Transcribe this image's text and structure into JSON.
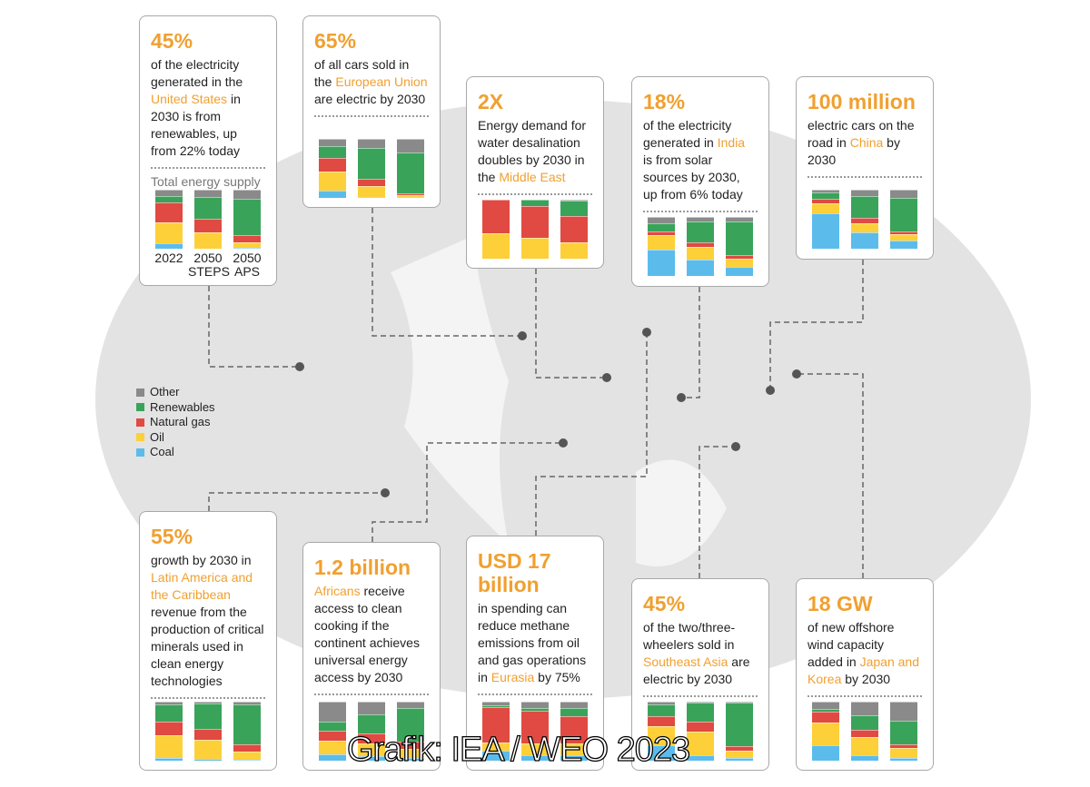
{
  "colors": {
    "accent": "#f0a030",
    "Coal": "#5bbcec",
    "Oil": "#fdd03a",
    "Natural gas": "#e04a42",
    "Renewables": "#3aa35a",
    "Other": "#8a8a8a",
    "map": "#e3e3e3"
  },
  "legend": {
    "items": [
      "Other",
      "Renewables",
      "Natural gas",
      "Oil",
      "Coal"
    ]
  },
  "credit": "Grafik: IEA / WEO 2023",
  "cards": [
    {
      "headline": "45%",
      "parts": [
        {
          "t": "of the electricity generated in the "
        },
        {
          "t": "United States",
          "hl": true
        },
        {
          "t": " in 2030 is from renewables, up from 22% today"
        }
      ],
      "subtitle": "Total energy supply",
      "xlabels": [
        "2022",
        "2050 STEPS",
        "2050 APS"
      ]
    },
    {
      "headline": "65%",
      "parts": [
        {
          "t": "of all cars sold in the "
        },
        {
          "t": "European Union",
          "hl": true
        },
        {
          "t": " are electric by 2030"
        }
      ]
    },
    {
      "headline": "2X",
      "parts": [
        {
          "t": "Energy demand for water desalination doubles by 2030 in the "
        },
        {
          "t": "Middle East",
          "hl": true
        }
      ]
    },
    {
      "headline": "18%",
      "parts": [
        {
          "t": "of the electricity generated in "
        },
        {
          "t": "India",
          "hl": true
        },
        {
          "t": " is from solar sources by 2030, up from 6% today"
        }
      ]
    },
    {
      "headline": "100 million",
      "parts": [
        {
          "t": "electric cars on the road in "
        },
        {
          "t": "China",
          "hl": true
        },
        {
          "t": " by 2030"
        }
      ]
    },
    {
      "headline": "55%",
      "parts": [
        {
          "t": "growth by 2030 in "
        },
        {
          "t": "Latin America and the Caribbean",
          "hl": true
        },
        {
          "t": " revenue from the production of critical minerals used in clean energy technologies"
        }
      ]
    },
    {
      "headline": "1.2 billion",
      "parts": [
        {
          "t": "Africans",
          "hl": true
        },
        {
          "t": " receive access to clean cooking if the continent achieves universal energy access by 2030"
        }
      ]
    },
    {
      "headline": "USD 17 billion",
      "parts": [
        {
          "t": "in spending can reduce methane emissions from oil and gas operations in "
        },
        {
          "t": "Eurasia",
          "hl": true
        },
        {
          "t": " by 75%"
        }
      ]
    },
    {
      "headline": "45%",
      "parts": [
        {
          "t": "of the two/three-wheelers sold in "
        },
        {
          "t": "Southeast Asia",
          "hl": true
        },
        {
          "t": " are electric by 2030"
        }
      ]
    },
    {
      "headline": "18 GW",
      "parts": [
        {
          "t": "of new offshore wind capacity added in "
        },
        {
          "t": "Japan and Korea",
          "hl": true
        },
        {
          "t": " by 2030"
        }
      ]
    }
  ],
  "chart_data": [
    {
      "type": "bar",
      "stacked": true,
      "region": "United States",
      "subtitle": "Total energy supply",
      "categories": [
        "2022",
        "2050 STEPS",
        "2050 APS"
      ],
      "unit": "%",
      "series": [
        {
          "name": "Coal",
          "values": [
            10,
            0,
            1
          ]
        },
        {
          "name": "Oil",
          "values": [
            34,
            28,
            9
          ]
        },
        {
          "name": "Natural gas",
          "values": [
            35,
            23,
            13
          ]
        },
        {
          "name": "Renewables",
          "values": [
            11,
            37,
            61
          ]
        },
        {
          "name": "Other",
          "values": [
            10,
            12,
            16
          ]
        }
      ]
    },
    {
      "type": "bar",
      "stacked": true,
      "region": "European Union",
      "categories": [
        "",
        "",
        ""
      ],
      "unit": "%",
      "series": [
        {
          "name": "Coal",
          "values": [
            13,
            2,
            2
          ]
        },
        {
          "name": "Oil",
          "values": [
            32,
            18,
            3
          ]
        },
        {
          "name": "Natural gas",
          "values": [
            23,
            13,
            2
          ]
        },
        {
          "name": "Renewables",
          "values": [
            19,
            51,
            70
          ]
        },
        {
          "name": "Other",
          "values": [
            13,
            16,
            23
          ]
        }
      ]
    },
    {
      "type": "bar",
      "stacked": true,
      "region": "Middle East",
      "categories": [
        "",
        "",
        ""
      ],
      "unit": "%",
      "series": [
        {
          "name": "Coal",
          "values": [
            0,
            0,
            0
          ]
        },
        {
          "name": "Oil",
          "values": [
            43,
            35,
            27
          ]
        },
        {
          "name": "Natural gas",
          "values": [
            57,
            55,
            45
          ]
        },
        {
          "name": "Renewables",
          "values": [
            0,
            10,
            26
          ]
        },
        {
          "name": "Other",
          "values": [
            0,
            0,
            2
          ]
        }
      ]
    },
    {
      "type": "bar",
      "stacked": true,
      "region": "India",
      "categories": [
        "",
        "",
        ""
      ],
      "unit": "%",
      "series": [
        {
          "name": "Coal",
          "values": [
            45,
            28,
            15
          ]
        },
        {
          "name": "Oil",
          "values": [
            25,
            21,
            15
          ]
        },
        {
          "name": "Natural gas",
          "values": [
            5,
            8,
            5
          ]
        },
        {
          "name": "Renewables",
          "values": [
            14,
            36,
            58
          ]
        },
        {
          "name": "Other",
          "values": [
            11,
            7,
            7
          ]
        }
      ]
    },
    {
      "type": "bar",
      "stacked": true,
      "region": "China",
      "categories": [
        "",
        "",
        ""
      ],
      "unit": "%",
      "series": [
        {
          "name": "Coal",
          "values": [
            60,
            28,
            14
          ]
        },
        {
          "name": "Oil",
          "values": [
            17,
            15,
            10
          ]
        },
        {
          "name": "Natural gas",
          "values": [
            8,
            9,
            5
          ]
        },
        {
          "name": "Renewables",
          "values": [
            10,
            37,
            57
          ]
        },
        {
          "name": "Other",
          "values": [
            5,
            11,
            14
          ]
        }
      ]
    },
    {
      "type": "bar",
      "stacked": true,
      "region": "Latin America and the Caribbean",
      "categories": [
        "",
        "",
        ""
      ],
      "unit": "%",
      "series": [
        {
          "name": "Coal",
          "values": [
            4,
            3,
            1
          ]
        },
        {
          "name": "Oil",
          "values": [
            39,
            32,
            14
          ]
        },
        {
          "name": "Natural gas",
          "values": [
            23,
            19,
            12
          ]
        },
        {
          "name": "Renewables",
          "values": [
            29,
            43,
            69
          ]
        },
        {
          "name": "Other",
          "values": [
            5,
            3,
            4
          ]
        }
      ]
    },
    {
      "type": "bar",
      "stacked": true,
      "region": "Africa",
      "categories": [
        "",
        "",
        ""
      ],
      "unit": "%",
      "series": [
        {
          "name": "Coal",
          "values": [
            11,
            8,
            5
          ]
        },
        {
          "name": "Oil",
          "values": [
            23,
            22,
            15
          ]
        },
        {
          "name": "Natural gas",
          "values": [
            17,
            16,
            13
          ]
        },
        {
          "name": "Renewables",
          "values": [
            15,
            32,
            57
          ]
        },
        {
          "name": "Other",
          "values": [
            34,
            22,
            10
          ]
        }
      ]
    },
    {
      "type": "bar",
      "stacked": true,
      "region": "Eurasia",
      "categories": [
        "",
        "",
        ""
      ],
      "unit": "%",
      "series": [
        {
          "name": "Coal",
          "values": [
            17,
            10,
            9
          ]
        },
        {
          "name": "Oil",
          "values": [
            14,
            20,
            21
          ]
        },
        {
          "name": "Natural gas",
          "values": [
            60,
            54,
            46
          ]
        },
        {
          "name": "Renewables",
          "values": [
            3,
            5,
            14
          ]
        },
        {
          "name": "Other",
          "values": [
            6,
            11,
            10
          ]
        }
      ]
    },
    {
      "type": "bar",
      "stacked": true,
      "region": "Southeast Asia",
      "categories": [
        "",
        "",
        ""
      ],
      "unit": "%",
      "series": [
        {
          "name": "Coal",
          "values": [
            26,
            10,
            5
          ]
        },
        {
          "name": "Oil",
          "values": [
            32,
            40,
            12
          ]
        },
        {
          "name": "Natural gas",
          "values": [
            18,
            16,
            8
          ]
        },
        {
          "name": "Renewables",
          "values": [
            20,
            33,
            73
          ]
        },
        {
          "name": "Other",
          "values": [
            4,
            1,
            2
          ]
        }
      ]
    },
    {
      "type": "bar",
      "stacked": true,
      "region": "Japan and Korea",
      "categories": [
        "",
        "",
        ""
      ],
      "unit": "%",
      "series": [
        {
          "name": "Coal",
          "values": [
            26,
            9,
            5
          ]
        },
        {
          "name": "Oil",
          "values": [
            38,
            31,
            17
          ]
        },
        {
          "name": "Natural gas",
          "values": [
            19,
            13,
            5
          ]
        },
        {
          "name": "Renewables",
          "values": [
            5,
            24,
            41
          ]
        },
        {
          "name": "Other",
          "values": [
            12,
            23,
            32
          ]
        }
      ]
    }
  ]
}
